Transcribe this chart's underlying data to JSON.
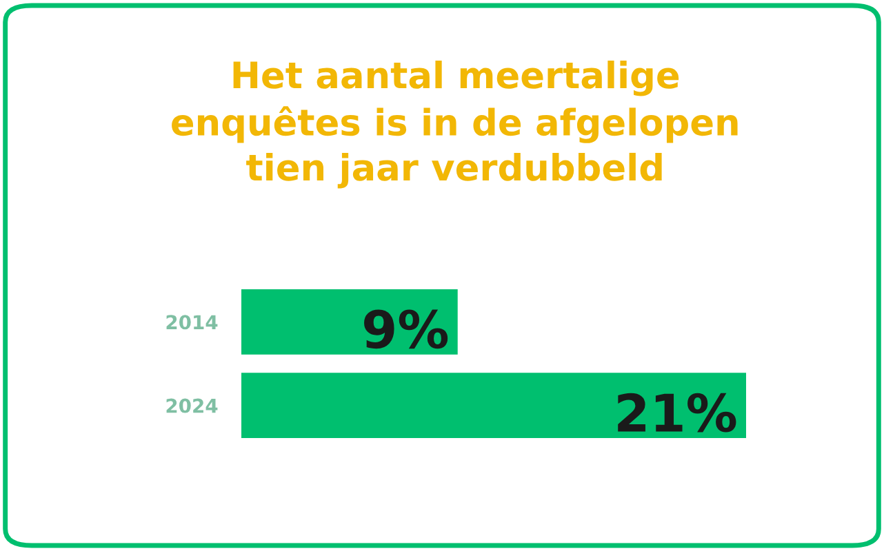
{
  "chart_data": {
    "type": "bar",
    "orientation": "horizontal",
    "title": "Het aantal meertalige\nenquêtes is in de afgelopen\ntien jaar verdubbeld",
    "categories": [
      "2014",
      "2024"
    ],
    "values": [
      9,
      21
    ],
    "value_labels": [
      "9%",
      "21%"
    ],
    "color": "#00bf6f",
    "tick_labels": "y",
    "grid": false,
    "legend": false
  }
}
